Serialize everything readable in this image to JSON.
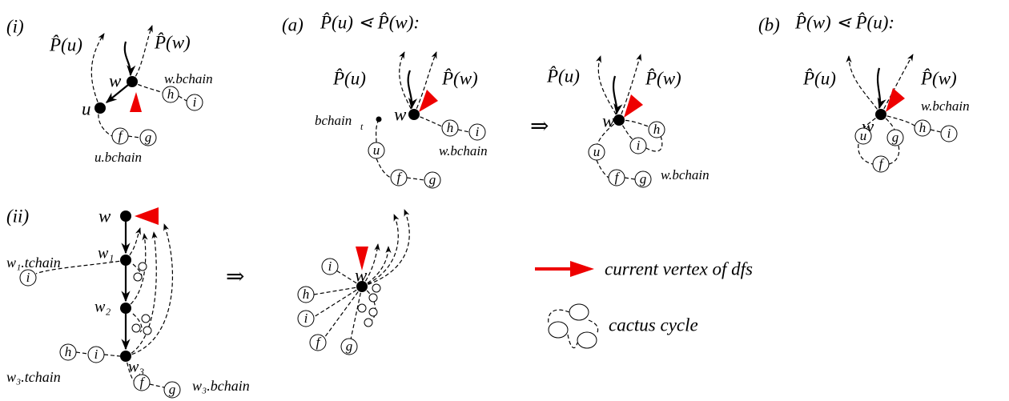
{
  "panel_i": {
    "tag": "(i)",
    "p_u": "P̂(u)",
    "p_w": "P̂(w)",
    "w": "w",
    "u": "u",
    "w_bchain": "w.bchain",
    "h": "h",
    "i": "i",
    "f": "f",
    "g": "g",
    "u_bchain": "u.bchain"
  },
  "panel_a": {
    "tag": "(a)",
    "condition": "P̂(u) ⋖ P̂(w):",
    "before": {
      "p_u": "P̂(u)",
      "p_w": "P̂(w)",
      "w": "w",
      "bchain": "bchain",
      "bchain_sub": "t",
      "u": "u",
      "f": "f",
      "g": "g",
      "h": "h",
      "i": "i",
      "w_bchain": "w.bchain"
    },
    "implies": "⇒",
    "after": {
      "p_u": "P̂(u)",
      "p_w": "P̂(w)",
      "w": "w",
      "h": "h",
      "i": "i",
      "u": "u",
      "f": "f",
      "g": "g",
      "w_bchain": "w.bchain"
    }
  },
  "panel_b": {
    "tag": "(b)",
    "condition": "P̂(w) ⋖ P̂(u):",
    "p_u": "P̂(u)",
    "p_w": "P̂(w)",
    "w": "w",
    "w_bchain": "w.bchain",
    "u": "u",
    "g": "g",
    "h": "h",
    "i": "i",
    "f": "f"
  },
  "panel_ii": {
    "tag": "(ii)",
    "w": "w",
    "w1": "w₁",
    "w1_tchain": "w₁.tchain",
    "i1": "i",
    "w2": "w₂",
    "w3": "w₃",
    "h": "h",
    "i2": "i",
    "w3_tchain": "w₃.tchain",
    "f": "f",
    "g": "g",
    "w3_bchain": "w₃.bchain",
    "implies": "⇒",
    "merged": {
      "i": "i",
      "w": "w",
      "h": "h",
      "i2": "i",
      "f": "f",
      "g": "g"
    }
  },
  "legend": {
    "current": "current vertex of dfs",
    "cactus": "cactus cycle"
  }
}
